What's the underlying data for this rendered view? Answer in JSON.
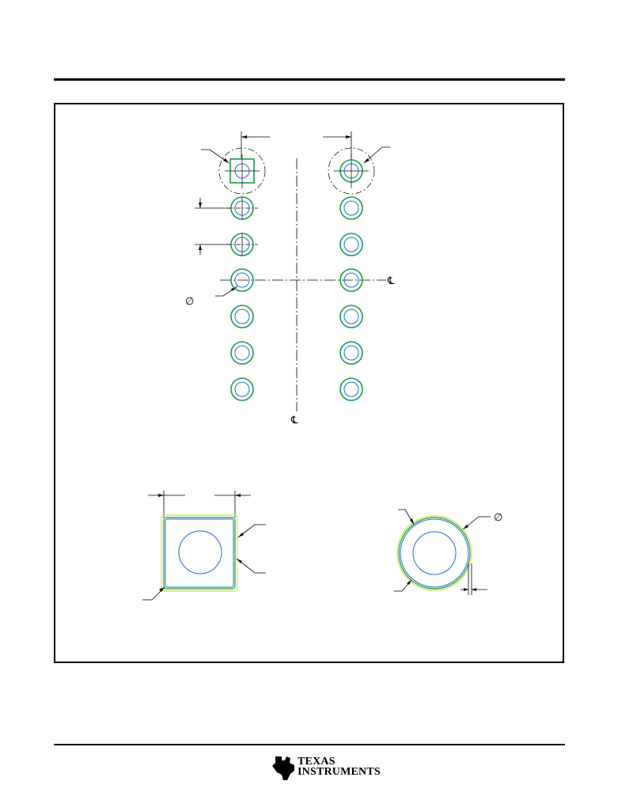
{
  "diagram": {
    "symbols": {
      "centerline_right": "℄",
      "centerline_bottom": "℄",
      "diameter_left": "∅",
      "diameter_detail": "∅"
    },
    "colors": {
      "copper_green": "#1a9a4a",
      "hole_blue": "#1c6fd1",
      "mask_yellow": "#d8e85a",
      "line_black": "#000000"
    },
    "left_column_pads": 7,
    "right_column_pads": 7,
    "pin1_pad_shape": "square",
    "other_pad_shape": "round"
  },
  "footer": {
    "logo": {
      "name": "ti-bug-icon",
      "line1": "Texas",
      "line2": "Instruments"
    }
  }
}
